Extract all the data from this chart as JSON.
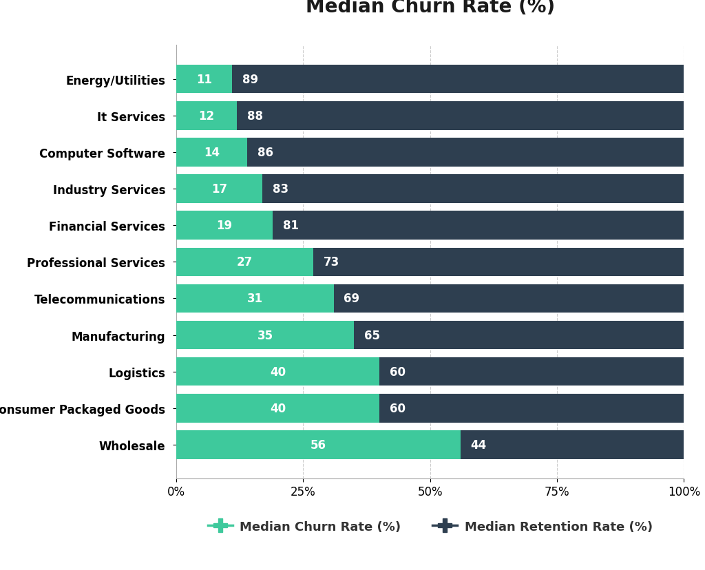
{
  "title": "Median Churn Rate (%)",
  "categories": [
    "Energy/Utilities",
    "It Services",
    "Computer Software",
    "Industry Services",
    "Financial Services",
    "Professional Services",
    "Telecommunications",
    "Manufacturing",
    "Logistics",
    "Consumer Packaged Goods",
    "Wholesale"
  ],
  "churn_values": [
    11,
    12,
    14,
    17,
    19,
    27,
    31,
    35,
    40,
    40,
    56
  ],
  "retention_values": [
    89,
    88,
    86,
    83,
    81,
    73,
    69,
    65,
    60,
    60,
    44
  ],
  "churn_color": "#3EC99C",
  "retention_color": "#2E3F50",
  "background_color": "#FFFFFF",
  "bar_height": 0.78,
  "title_fontsize": 20,
  "label_fontsize": 12,
  "tick_fontsize": 12,
  "legend_fontsize": 13,
  "value_label_fontsize": 12,
  "legend_label_churn": "Median Churn Rate (%)",
  "legend_label_retention": "Median Retention Rate (%)",
  "xlim": [
    0,
    100
  ],
  "xticks": [
    0,
    25,
    50,
    75,
    100
  ],
  "xticklabels": [
    "0%",
    "25%",
    "50%",
    "75%",
    "100%"
  ]
}
